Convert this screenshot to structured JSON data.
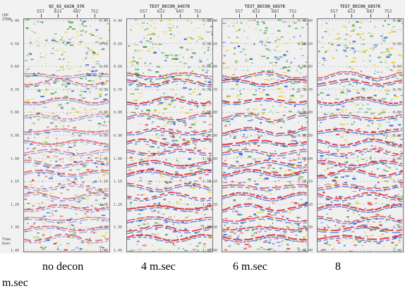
{
  "header": {
    "axis_title_1": "CDP",
    "axis_title_2": "ITEM"
  },
  "footer": {
    "axis_title_1": "Time",
    "axis_title_2": "msec"
  },
  "time_labels": [
    "0.40",
    "0.50",
    "0.60",
    "0.70",
    "0.80",
    "0.90",
    "1.00",
    "1.10",
    "1.20",
    "1.30",
    "1.40"
  ],
  "cdp_labels": [
    "557",
    "622",
    "687",
    "752"
  ],
  "panels": [
    {
      "title": "QC_02_GAIN_STK",
      "caption": "no decon"
    },
    {
      "title": "TEST_DECON_G4STK",
      "caption": "4 m.sec"
    },
    {
      "title": "TEST_DECON_G6STK",
      "caption": "6 m.sec"
    },
    {
      "title": "TEST_DECON_G8STK",
      "caption": "8"
    }
  ],
  "caption_tail": "m.sec",
  "colors": {
    "peak_red": "#d8202a",
    "trough_blue": "#1d4fd6",
    "yellow": "#e7d12b",
    "green": "#2f9a43",
    "background": "#f0f0f0"
  }
}
